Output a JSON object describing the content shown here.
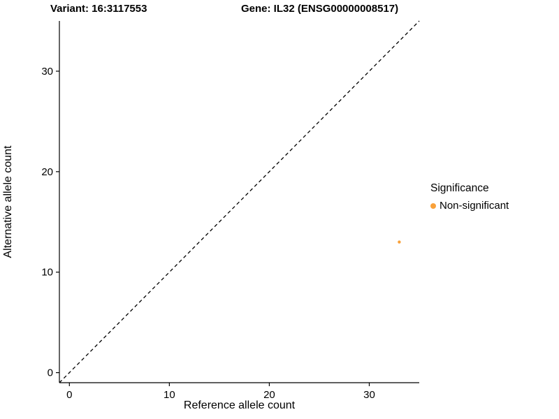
{
  "chart_data": {
    "type": "scatter",
    "title_left": "Variant: 16:3117553",
    "title_right": "Gene: IL32 (ENSG00000008517)",
    "xlabel": "Reference allele count",
    "ylabel": "Alternative allele count",
    "xlim": [
      -1,
      35
    ],
    "ylim": [
      -1,
      35
    ],
    "xticks": [
      0,
      10,
      20,
      30
    ],
    "yticks": [
      0,
      10,
      20,
      30
    ],
    "grid": false,
    "identity_line": {
      "style": "dashed",
      "from": [
        -1,
        -1
      ],
      "to": [
        35,
        35
      ],
      "color": "#000000"
    },
    "points": [
      {
        "x": 33,
        "y": 13,
        "series": "Non-significant"
      }
    ],
    "point_radius_px": 2.2,
    "legend": {
      "title": "Significance",
      "position": "right",
      "entries": [
        {
          "label": "Non-significant",
          "color": "#F9A13A"
        }
      ]
    },
    "axis_color": "#000000",
    "background": "#ffffff"
  }
}
